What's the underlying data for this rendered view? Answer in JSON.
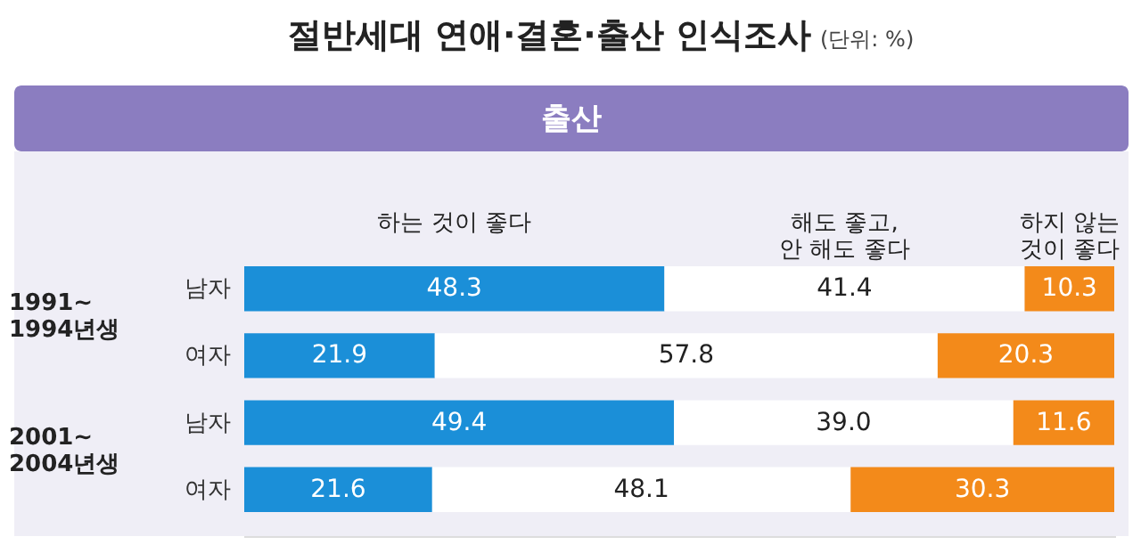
{
  "chart_data": {
    "type": "bar",
    "orientation": "horizontal",
    "stacked": true,
    "title": "절반세대 연애·결혼·출산 인식조사",
    "subtitle": "(단위: %)",
    "annotations": [
      "출산",
      "1991~\n1994년생",
      "2001~\n2004년생"
    ],
    "categories": [
      "남자",
      "여자",
      "남자",
      "여자"
    ],
    "series": [
      {
        "name": "하는 것이 좋다",
        "color": "#1b8fd8",
        "values": [
          48.3,
          21.9,
          49.4,
          21.6
        ],
        "value_labels": [
          "48.3",
          "21.9",
          "49.4",
          "21.6"
        ]
      },
      {
        "name": "해도 좋고,\n안 해도 좋다",
        "color": "#ffffff",
        "values": [
          41.4,
          57.8,
          39.0,
          48.1
        ],
        "value_labels": [
          "41.4",
          "57.8",
          "39.0",
          "48.1"
        ]
      },
      {
        "name": "하지 않는\n것이 좋다",
        "color": "#f38a1a",
        "values": [
          10.3,
          20.3,
          11.6,
          30.3
        ],
        "value_labels": [
          "10.3",
          "20.3",
          "11.6",
          "30.3"
        ]
      }
    ]
  }
}
